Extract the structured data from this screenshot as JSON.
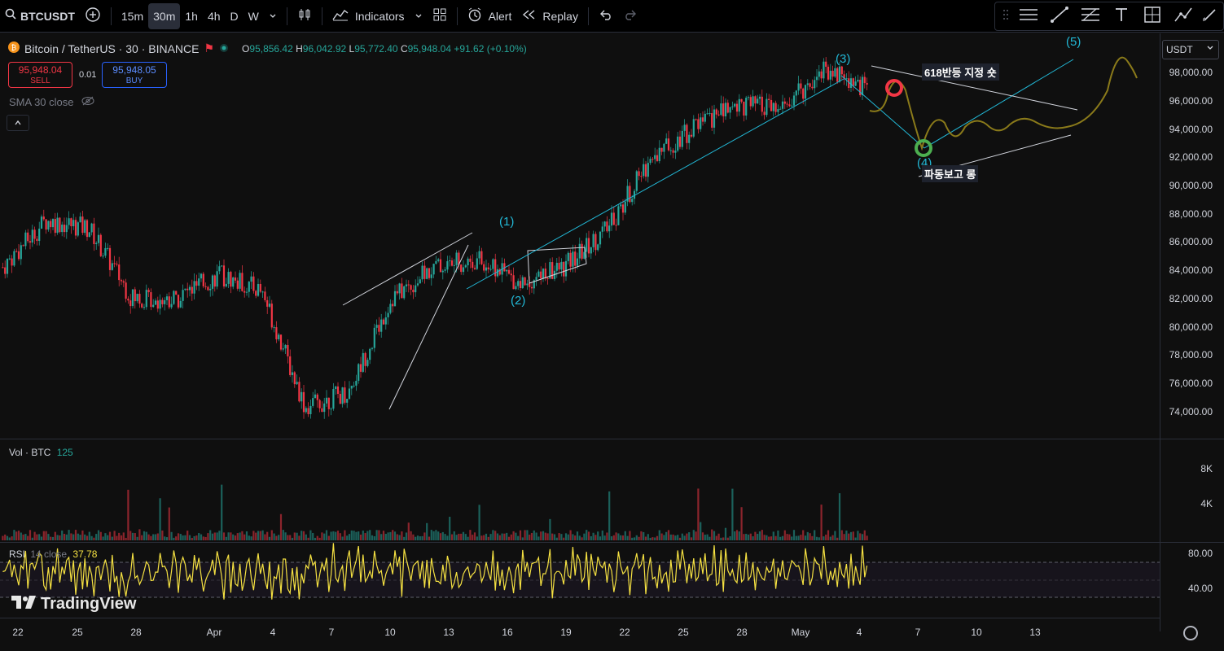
{
  "toolbar": {
    "symbol": "BTCUSDT",
    "intervals": [
      "15m",
      "30m",
      "1h",
      "4h",
      "D",
      "W"
    ],
    "active_interval": "30m",
    "indicators_label": "Indicators",
    "alert_label": "Alert",
    "replay_label": "Replay"
  },
  "legend": {
    "title": "Bitcoin / TetherUS · 30 · BINANCE",
    "o_label": "O",
    "o": "95,856.42",
    "h_label": "H",
    "h": "96,042.92",
    "l_label": "L",
    "l": "95,772.40",
    "c_label": "C",
    "c": "95,948.04",
    "change": "+91.62 (+0.10%)"
  },
  "trade": {
    "sell_price": "95,948.04",
    "sell_label": "SELL",
    "spread": "0.01",
    "buy_price": "95,948.05",
    "buy_label": "BUY"
  },
  "sma_label": "SMA 30 close",
  "currency": "USDT",
  "price_scale": [
    "98,000.00",
    "96,000.00",
    "94,000.00",
    "92,000.00",
    "90,000.00",
    "88,000.00",
    "86,000.00",
    "84,000.00",
    "82,000.00",
    "80,000.00",
    "78,000.00",
    "76,000.00",
    "74,000.00"
  ],
  "volume": {
    "label": "Vol · BTC",
    "value": "125",
    "scale": [
      "8K",
      "4K"
    ]
  },
  "rsi": {
    "label": "RSI",
    "params": "14 close",
    "value": "37.78",
    "scale": [
      "80.00",
      "40.00"
    ]
  },
  "time_axis": [
    "22",
    "25",
    "28",
    "Apr",
    "4",
    "7",
    "10",
    "13",
    "16",
    "19",
    "22",
    "25",
    "28",
    "May",
    "4",
    "7",
    "10",
    "13"
  ],
  "annotations": {
    "note_top": "618반등 지정 숏",
    "note_bottom": "파동보고 롱",
    "wave1": "(1)",
    "wave2": "(2)",
    "wave3": "(3)",
    "wave4": "(4)",
    "wave5": "(5)"
  },
  "watermark": "TradingView",
  "colors": {
    "up": "#26a69a",
    "down": "#f23645",
    "rsi": "#f5e142",
    "wave": "#22b8d6",
    "projection": "#8a7a1a"
  },
  "chart_data": {
    "type": "line",
    "series": [
      {
        "values_desc": "BTCUSDT 30m close, approximate path",
        "x": [
          "Mar 20",
          "Mar 24",
          "Mar 26",
          "Mar 29",
          "Apr 1",
          "Apr 3",
          "Apr 6",
          "Apr 7",
          "Apr 9",
          "Apr 10",
          "Apr 12",
          "Apr 16",
          "Apr 17",
          "Apr 20",
          "Apr 21",
          "Apr 22",
          "Apr 24",
          "Apr 27",
          "Apr 30",
          "May 2",
          "May 4"
        ],
        "values": [
          84500,
          87500,
          87000,
          82500,
          82500,
          84000,
          83000,
          75500,
          76500,
          82500,
          84500,
          85000,
          83500,
          84500,
          87000,
          91500,
          93500,
          95000,
          94500,
          97300,
          96000
        ]
      }
    ],
    "ylim": [
      73500,
      99500
    ]
  }
}
